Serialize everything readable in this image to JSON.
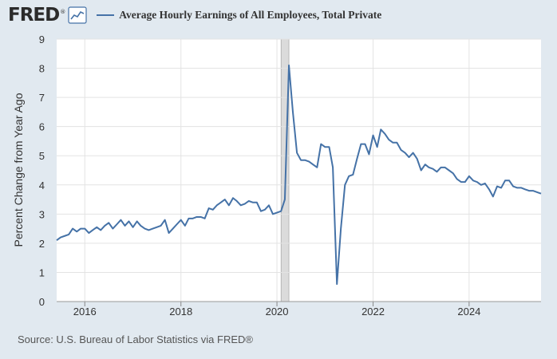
{
  "header": {
    "logo_text": "FRED",
    "logo_mark": "®",
    "icon": "line-chart-icon",
    "series_label": "Average Hourly Earnings of All Employees, Total Private"
  },
  "source": "Source: U.S. Bureau of Labor Statistics via FRED®",
  "chart_data": {
    "type": "line",
    "title": "",
    "xlabel": "",
    "ylabel": "Percent Change from Year Ago",
    "ylim": [
      0,
      9
    ],
    "xlim": [
      "2015-06-01",
      "2025-07-01"
    ],
    "y_ticks": [
      0,
      1,
      2,
      3,
      4,
      5,
      6,
      7,
      8,
      9
    ],
    "x_ticks": [
      "2016",
      "2018",
      "2020",
      "2022",
      "2024"
    ],
    "grid": true,
    "recession": [
      "2020-02-01",
      "2020-04-01"
    ],
    "line_color": "#4572a7",
    "recession_color": "#cccccc",
    "series": [
      {
        "name": "Average Hourly Earnings of All Employees, Total Private",
        "x": [
          "2015-06",
          "2015-07",
          "2015-08",
          "2015-09",
          "2015-10",
          "2015-11",
          "2015-12",
          "2016-01",
          "2016-02",
          "2016-03",
          "2016-04",
          "2016-05",
          "2016-06",
          "2016-07",
          "2016-08",
          "2016-09",
          "2016-10",
          "2016-11",
          "2016-12",
          "2017-01",
          "2017-02",
          "2017-03",
          "2017-04",
          "2017-05",
          "2017-06",
          "2017-07",
          "2017-08",
          "2017-09",
          "2017-10",
          "2017-11",
          "2017-12",
          "2018-01",
          "2018-02",
          "2018-03",
          "2018-04",
          "2018-05",
          "2018-06",
          "2018-07",
          "2018-08",
          "2018-09",
          "2018-10",
          "2018-11",
          "2018-12",
          "2019-01",
          "2019-02",
          "2019-03",
          "2019-04",
          "2019-05",
          "2019-06",
          "2019-07",
          "2019-08",
          "2019-09",
          "2019-10",
          "2019-11",
          "2019-12",
          "2020-01",
          "2020-02",
          "2020-03",
          "2020-04",
          "2020-05",
          "2020-06",
          "2020-07",
          "2020-08",
          "2020-09",
          "2020-10",
          "2020-11",
          "2020-12",
          "2021-01",
          "2021-02",
          "2021-03",
          "2021-04",
          "2021-05",
          "2021-06",
          "2021-07",
          "2021-08",
          "2021-09",
          "2021-10",
          "2021-11",
          "2021-12",
          "2022-01",
          "2022-02",
          "2022-03",
          "2022-04",
          "2022-05",
          "2022-06",
          "2022-07",
          "2022-08",
          "2022-09",
          "2022-10",
          "2022-11",
          "2022-12",
          "2023-01",
          "2023-02",
          "2023-03",
          "2023-04",
          "2023-05",
          "2023-06",
          "2023-07",
          "2023-08",
          "2023-09",
          "2023-10",
          "2023-11",
          "2023-12",
          "2024-01",
          "2024-02",
          "2024-03",
          "2024-04",
          "2024-05",
          "2024-06",
          "2024-07",
          "2024-08",
          "2024-09",
          "2024-10",
          "2024-11",
          "2024-12",
          "2025-01",
          "2025-02",
          "2025-03",
          "2025-04",
          "2025-05",
          "2025-06",
          "2025-07"
        ],
        "values": [
          2.1,
          2.2,
          2.25,
          2.3,
          2.5,
          2.4,
          2.5,
          2.5,
          2.35,
          2.45,
          2.55,
          2.45,
          2.6,
          2.7,
          2.5,
          2.65,
          2.8,
          2.6,
          2.75,
          2.55,
          2.75,
          2.6,
          2.5,
          2.45,
          2.5,
          2.55,
          2.6,
          2.8,
          2.35,
          2.5,
          2.65,
          2.8,
          2.6,
          2.85,
          2.85,
          2.9,
          2.9,
          2.85,
          3.2,
          3.15,
          3.3,
          3.4,
          3.5,
          3.3,
          3.55,
          3.45,
          3.3,
          3.35,
          3.45,
          3.4,
          3.4,
          3.1,
          3.15,
          3.3,
          3.0,
          3.05,
          3.1,
          3.5,
          8.1,
          6.5,
          5.1,
          4.85,
          4.85,
          4.8,
          4.7,
          4.6,
          5.4,
          5.3,
          5.3,
          4.6,
          0.6,
          2.5,
          4.0,
          4.3,
          4.35,
          4.9,
          5.4,
          5.4,
          5.05,
          5.7,
          5.3,
          5.9,
          5.75,
          5.55,
          5.45,
          5.45,
          5.2,
          5.1,
          4.95,
          5.1,
          4.9,
          4.5,
          4.7,
          4.6,
          4.55,
          4.45,
          4.6,
          4.6,
          4.5,
          4.4,
          4.2,
          4.1,
          4.1,
          4.3,
          4.15,
          4.1,
          4.0,
          4.05,
          3.85,
          3.6,
          3.95,
          3.9,
          4.15,
          4.15,
          3.95,
          3.9,
          3.9,
          3.85,
          3.8,
          3.8,
          3.75,
          3.7
        ]
      }
    ]
  }
}
